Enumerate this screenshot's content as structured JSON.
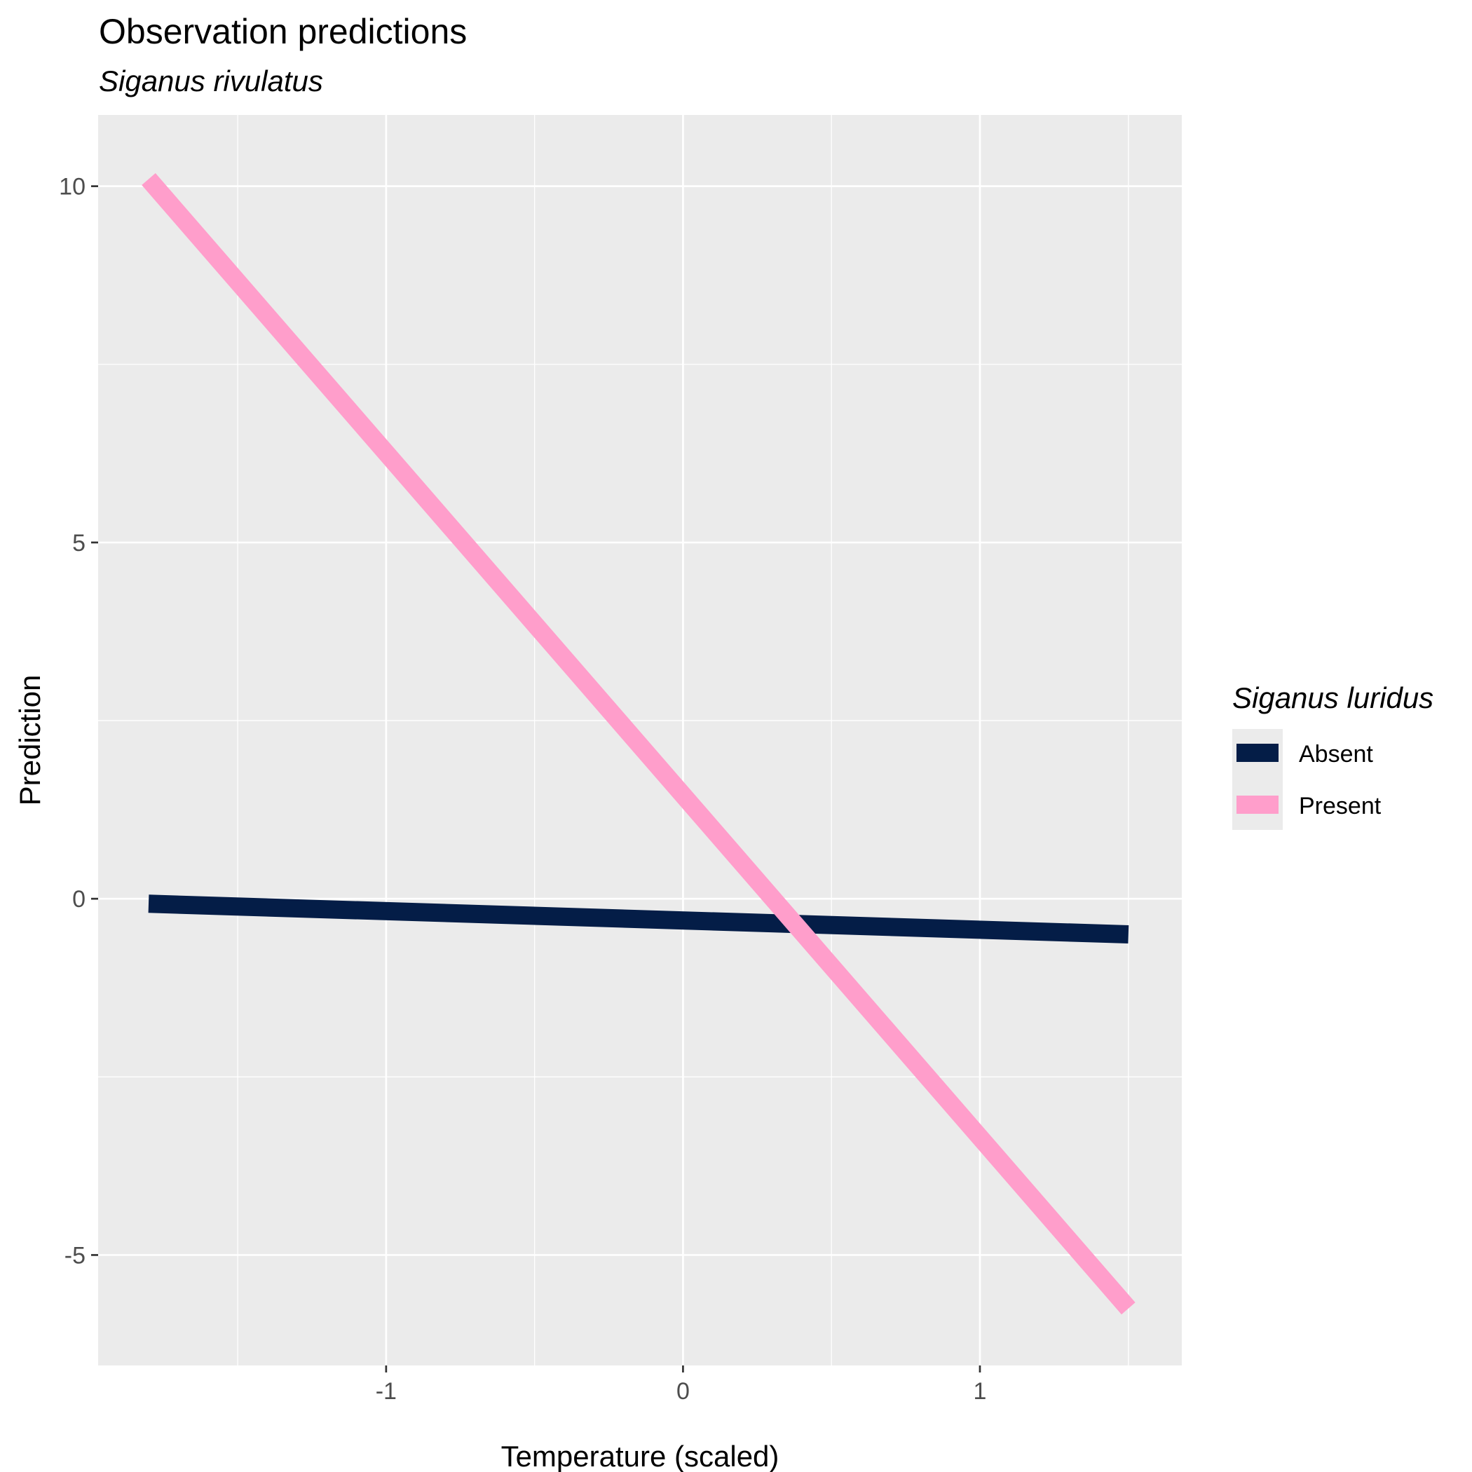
{
  "chart_data": {
    "type": "line",
    "title": "Observation predictions",
    "subtitle": "Siganus rivulatus",
    "xlabel": "Temperature (scaled)",
    "ylabel": "Prediction",
    "xlim": [
      -1.97,
      1.68
    ],
    "ylim": [
      -6.55,
      11.0
    ],
    "x_ticks": [
      -1,
      0,
      1
    ],
    "x_tick_labels": [
      "-1",
      "0",
      "1"
    ],
    "y_ticks": [
      -5,
      0,
      5,
      10
    ],
    "y_tick_labels": [
      "-5",
      "0",
      "5",
      "10"
    ],
    "grid": true,
    "legend": {
      "title": "Siganus luridus",
      "placement": "right"
    },
    "series": [
      {
        "name": "Absent",
        "color": "#041d47",
        "x": [
          -1.8,
          1.5
        ],
        "y": [
          -0.07,
          -0.5
        ]
      },
      {
        "name": "Present",
        "color": "#ff9ecb",
        "x": [
          -1.8,
          1.5
        ],
        "y": [
          10.1,
          -5.75
        ]
      }
    ],
    "panel_background": "#ebebeb",
    "grid_color": "#ffffff"
  }
}
